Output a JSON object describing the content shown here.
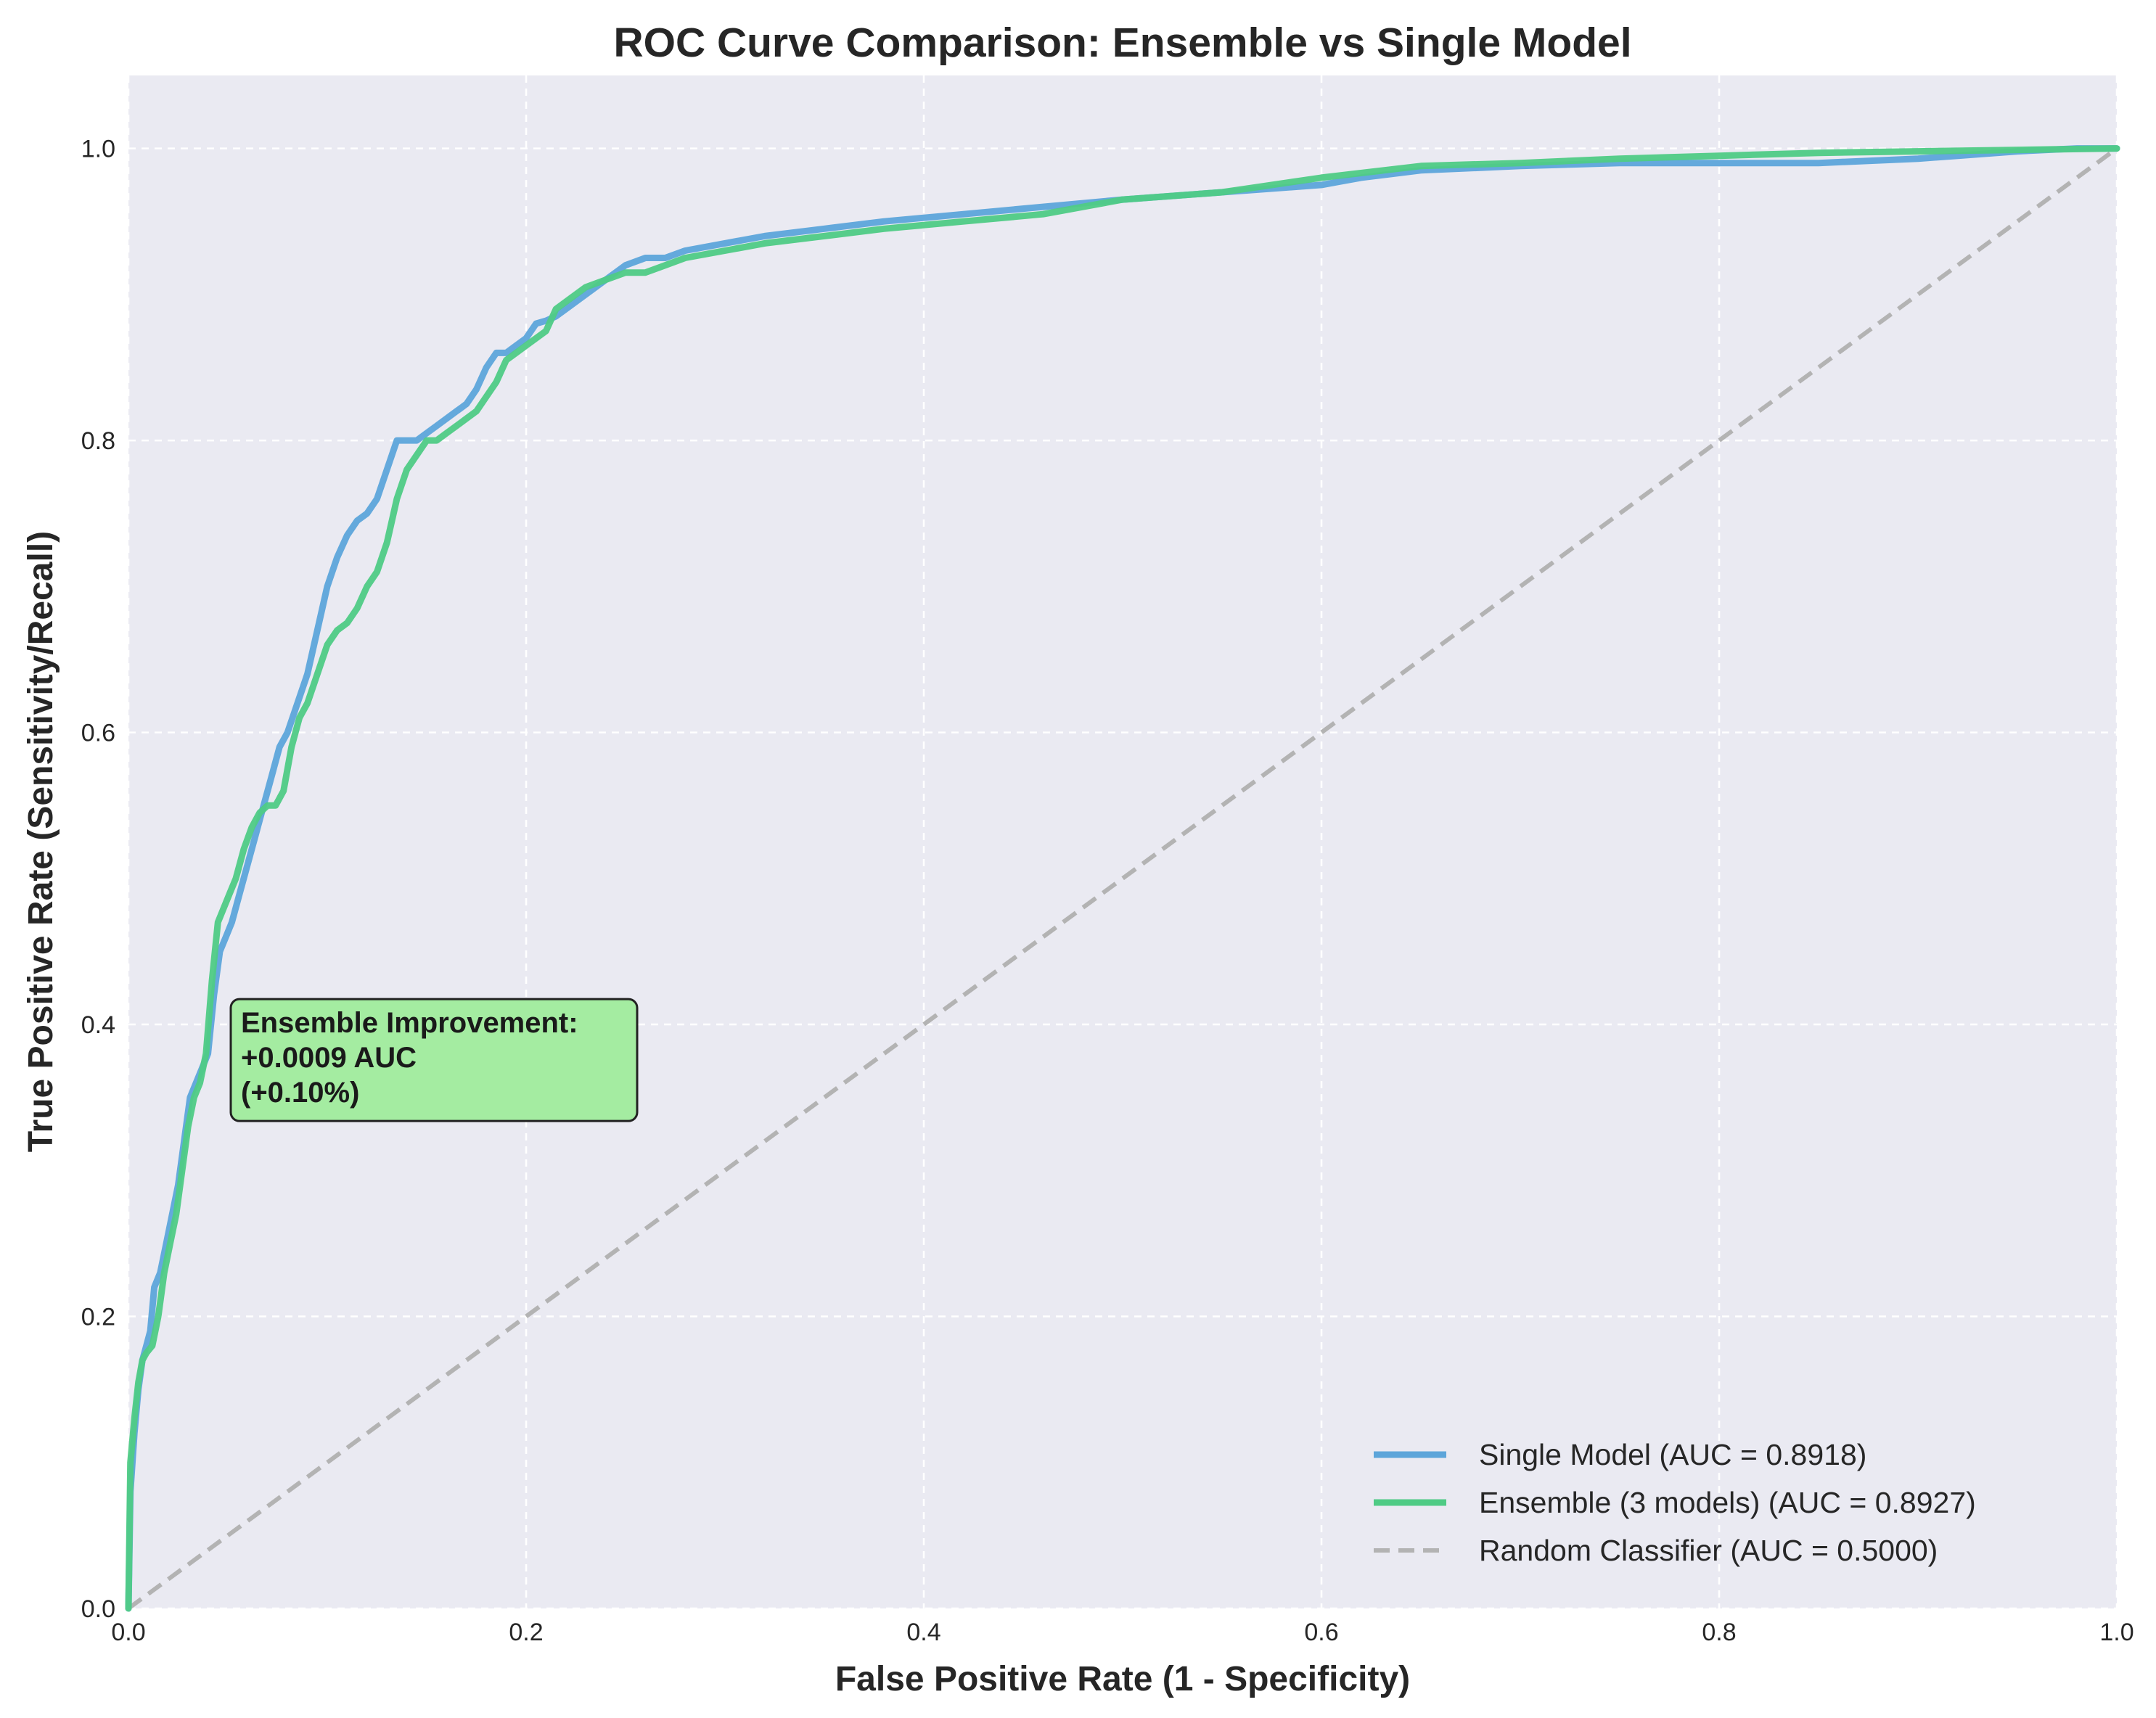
{
  "chart_data": {
    "type": "line",
    "title": "ROC Curve Comparison: Ensemble vs Single Model",
    "xlabel": "False Positive Rate (1 - Specificity)",
    "ylabel": "True Positive Rate (Sensitivity/Recall)",
    "xlim": [
      0.0,
      1.0
    ],
    "ylim": [
      0.0,
      1.05
    ],
    "xticks": [
      "0.0",
      "0.2",
      "0.4",
      "0.6",
      "0.8",
      "1.0"
    ],
    "yticks": [
      "0.0",
      "0.2",
      "0.4",
      "0.6",
      "0.8",
      "1.0"
    ],
    "grid": true,
    "legend_position": "lower-right",
    "series": [
      {
        "name": "Single Model (AUC = 0.8918)",
        "color": "#5DA5DA",
        "style": "solid",
        "x": [
          0.0,
          0.001,
          0.003,
          0.005,
          0.007,
          0.009,
          0.011,
          0.013,
          0.016,
          0.019,
          0.022,
          0.025,
          0.028,
          0.031,
          0.034,
          0.037,
          0.04,
          0.043,
          0.046,
          0.049,
          0.052,
          0.056,
          0.06,
          0.064,
          0.068,
          0.072,
          0.076,
          0.08,
          0.085,
          0.09,
          0.095,
          0.1,
          0.105,
          0.11,
          0.115,
          0.12,
          0.125,
          0.13,
          0.135,
          0.14,
          0.145,
          0.15,
          0.155,
          0.16,
          0.165,
          0.17,
          0.175,
          0.18,
          0.185,
          0.19,
          0.195,
          0.2,
          0.205,
          0.21,
          0.215,
          0.22,
          0.23,
          0.24,
          0.25,
          0.26,
          0.27,
          0.28,
          0.3,
          0.32,
          0.35,
          0.38,
          0.42,
          0.46,
          0.5,
          0.55,
          0.6,
          0.62,
          0.65,
          0.7,
          0.75,
          0.8,
          0.85,
          0.9,
          0.92,
          0.95,
          0.98,
          1.0
        ],
        "y": [
          0.0,
          0.08,
          0.12,
          0.15,
          0.17,
          0.18,
          0.19,
          0.22,
          0.23,
          0.25,
          0.27,
          0.29,
          0.32,
          0.35,
          0.36,
          0.37,
          0.38,
          0.42,
          0.45,
          0.46,
          0.47,
          0.49,
          0.51,
          0.53,
          0.55,
          0.57,
          0.59,
          0.6,
          0.62,
          0.64,
          0.67,
          0.7,
          0.72,
          0.735,
          0.745,
          0.75,
          0.76,
          0.78,
          0.8,
          0.8,
          0.8,
          0.805,
          0.81,
          0.815,
          0.82,
          0.825,
          0.835,
          0.85,
          0.86,
          0.86,
          0.865,
          0.87,
          0.88,
          0.882,
          0.885,
          0.89,
          0.9,
          0.91,
          0.92,
          0.925,
          0.925,
          0.93,
          0.935,
          0.94,
          0.945,
          0.95,
          0.955,
          0.96,
          0.965,
          0.97,
          0.975,
          0.98,
          0.985,
          0.988,
          0.99,
          0.99,
          0.99,
          0.993,
          0.995,
          0.998,
          1.0,
          1.0
        ]
      },
      {
        "name": "Ensemble (3 models) (AUC = 0.8927)",
        "color": "#4FCB85",
        "style": "solid",
        "x": [
          0.0,
          0.001,
          0.003,
          0.005,
          0.007,
          0.009,
          0.012,
          0.015,
          0.018,
          0.021,
          0.024,
          0.027,
          0.03,
          0.033,
          0.036,
          0.039,
          0.042,
          0.045,
          0.048,
          0.051,
          0.054,
          0.058,
          0.062,
          0.066,
          0.07,
          0.074,
          0.078,
          0.082,
          0.086,
          0.09,
          0.095,
          0.1,
          0.105,
          0.11,
          0.115,
          0.12,
          0.125,
          0.13,
          0.135,
          0.14,
          0.145,
          0.15,
          0.155,
          0.16,
          0.165,
          0.17,
          0.175,
          0.18,
          0.185,
          0.19,
          0.195,
          0.2,
          0.205,
          0.21,
          0.215,
          0.22,
          0.23,
          0.24,
          0.25,
          0.26,
          0.27,
          0.28,
          0.3,
          0.32,
          0.35,
          0.38,
          0.42,
          0.46,
          0.5,
          0.55,
          0.6,
          0.65,
          0.7,
          0.75,
          0.8,
          0.85,
          0.9,
          0.95,
          1.0
        ],
        "y": [
          0.0,
          0.1,
          0.13,
          0.155,
          0.17,
          0.175,
          0.18,
          0.2,
          0.23,
          0.25,
          0.27,
          0.3,
          0.33,
          0.35,
          0.36,
          0.38,
          0.43,
          0.47,
          0.48,
          0.49,
          0.5,
          0.52,
          0.535,
          0.545,
          0.55,
          0.55,
          0.56,
          0.59,
          0.61,
          0.62,
          0.64,
          0.66,
          0.67,
          0.675,
          0.685,
          0.7,
          0.71,
          0.73,
          0.76,
          0.78,
          0.79,
          0.8,
          0.8,
          0.805,
          0.81,
          0.815,
          0.82,
          0.83,
          0.84,
          0.855,
          0.86,
          0.865,
          0.87,
          0.875,
          0.89,
          0.895,
          0.905,
          0.91,
          0.915,
          0.915,
          0.92,
          0.925,
          0.93,
          0.935,
          0.94,
          0.945,
          0.95,
          0.955,
          0.965,
          0.97,
          0.98,
          0.988,
          0.99,
          0.993,
          0.995,
          0.997,
          0.998,
          0.999,
          1.0
        ]
      },
      {
        "name": "Random Classifier (AUC = 0.5000)",
        "color": "#B3B3B3",
        "style": "dashed",
        "x": [
          0.0,
          1.0
        ],
        "y": [
          0.0,
          1.0
        ]
      }
    ],
    "annotation": {
      "lines": [
        "Ensemble Improvement:",
        "+0.0009 AUC",
        "(+0.10%)"
      ],
      "x": 0.05,
      "y": 0.39,
      "facecolor": "#A4ECA1",
      "edgecolor": "#222222"
    },
    "colors": {
      "plot_background": "#EAEAF2",
      "grid": "#FFFFFF",
      "text": "#262626"
    }
  }
}
